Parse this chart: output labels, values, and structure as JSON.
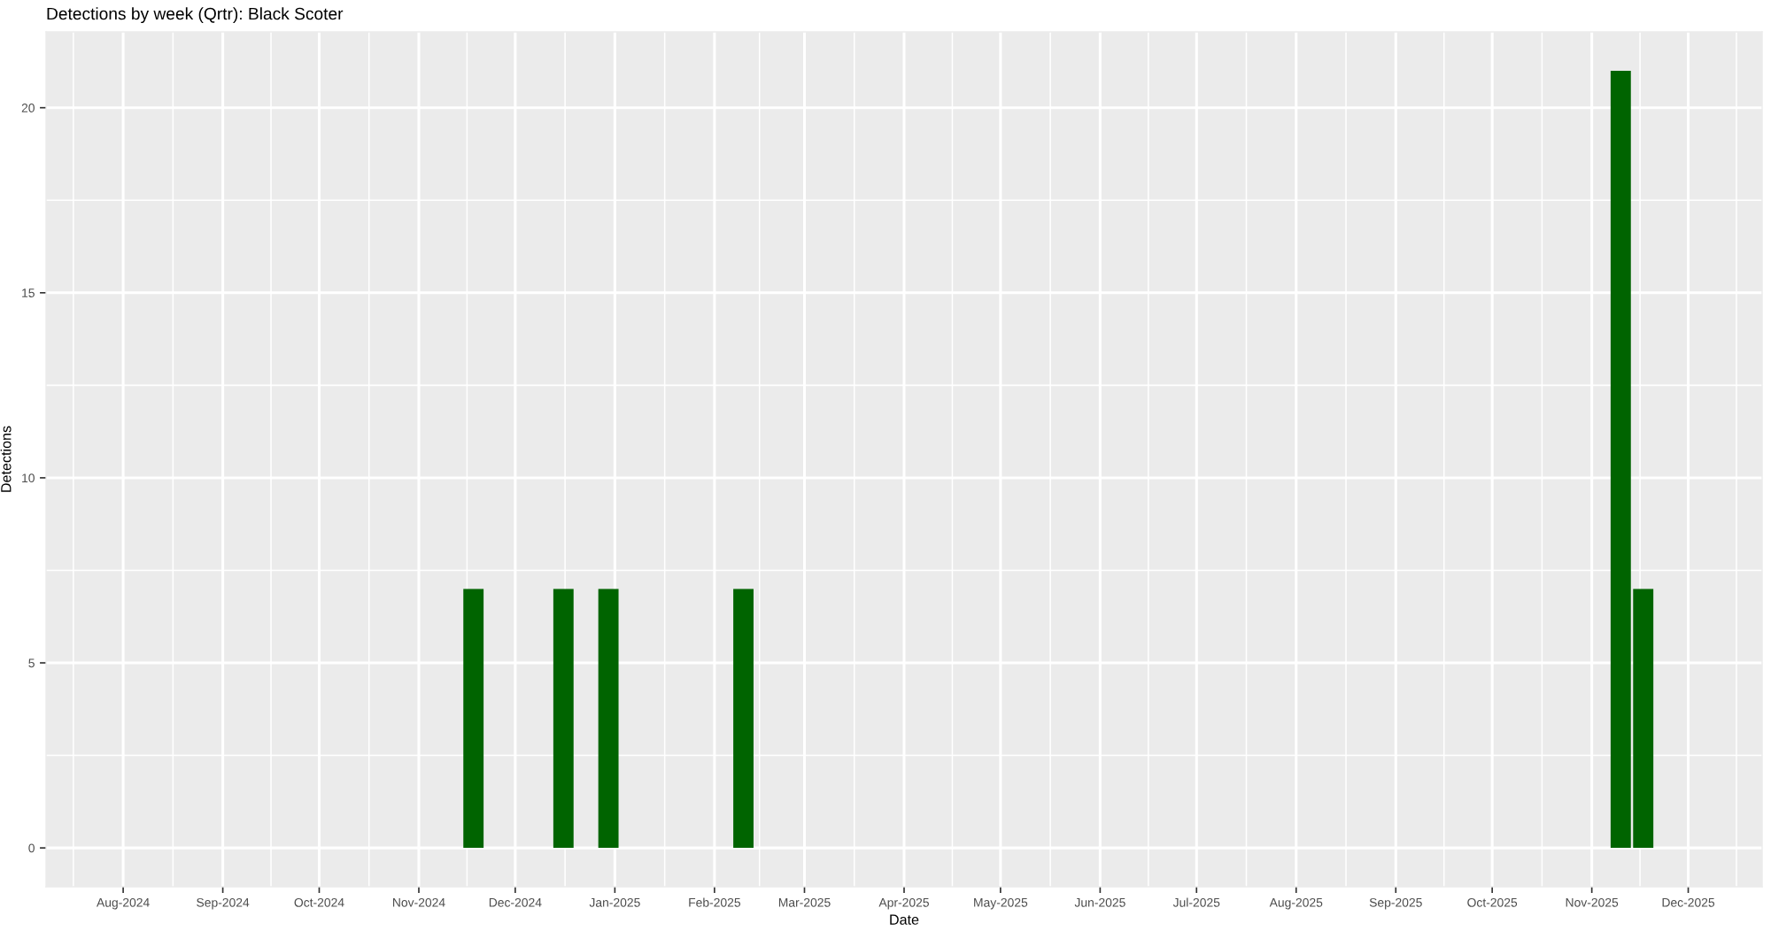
{
  "chart_data": {
    "type": "bar",
    "title": "Detections by week (Qrtr): Black Scoter",
    "xlabel": "Date",
    "ylabel": "Detections",
    "x": [
      "2024-11-18",
      "2024-12-16",
      "2024-12-30",
      "2025-02-10",
      "2025-11-10",
      "2025-11-17"
    ],
    "values": [
      7,
      7,
      7,
      7,
      21,
      7
    ],
    "color": "#006400",
    "xlim": [
      "2024-07-08",
      "2025-12-24"
    ],
    "xticks": [
      {
        "value": "2024-08-01",
        "label": "Aug-2024"
      },
      {
        "value": "2024-09-01",
        "label": "Sep-2024"
      },
      {
        "value": "2024-10-01",
        "label": "Oct-2024"
      },
      {
        "value": "2024-11-01",
        "label": "Nov-2024"
      },
      {
        "value": "2024-12-01",
        "label": "Dec-2024"
      },
      {
        "value": "2025-01-01",
        "label": "Jan-2025"
      },
      {
        "value": "2025-02-01",
        "label": "Feb-2025"
      },
      {
        "value": "2025-03-01",
        "label": "Mar-2025"
      },
      {
        "value": "2025-04-01",
        "label": "Apr-2025"
      },
      {
        "value": "2025-05-01",
        "label": "May-2025"
      },
      {
        "value": "2025-06-01",
        "label": "Jun-2025"
      },
      {
        "value": "2025-07-01",
        "label": "Jul-2025"
      },
      {
        "value": "2025-08-01",
        "label": "Aug-2025"
      },
      {
        "value": "2025-09-01",
        "label": "Sep-2025"
      },
      {
        "value": "2025-10-01",
        "label": "Oct-2025"
      },
      {
        "value": "2025-11-01",
        "label": "Nov-2025"
      },
      {
        "value": "2025-12-01",
        "label": "Dec-2025"
      }
    ],
    "ylim": [
      -1.05,
      22.05
    ],
    "yticks": [
      0,
      5,
      10,
      15,
      20
    ],
    "grid": true
  }
}
